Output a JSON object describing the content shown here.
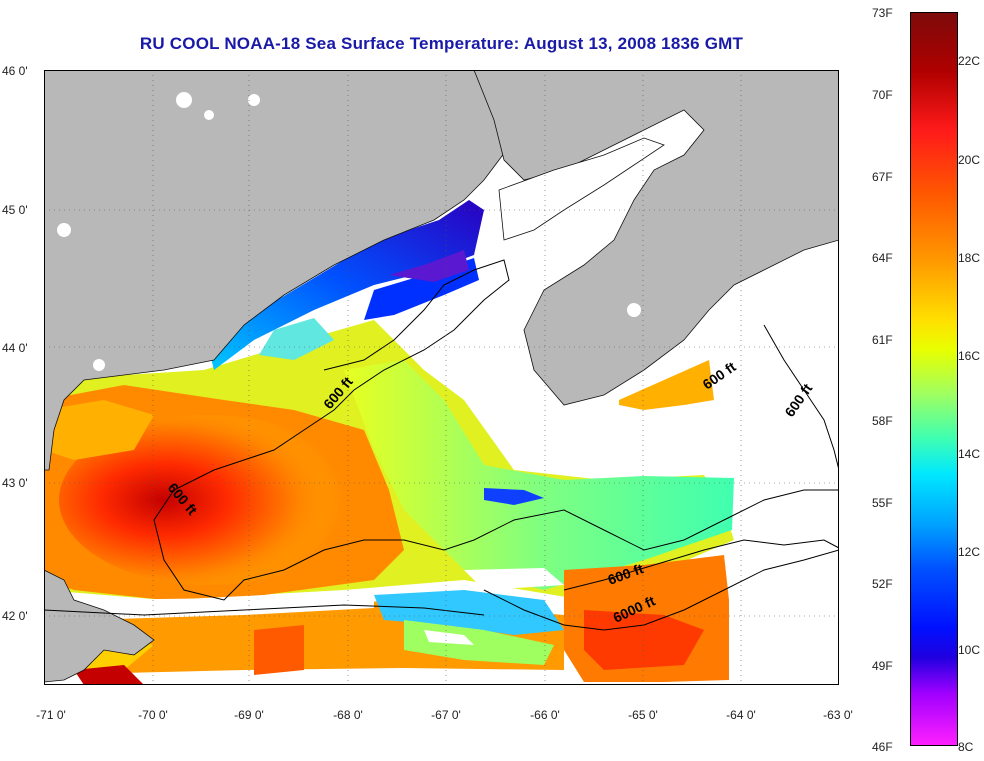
{
  "title": "RU COOL  NOAA-18  Sea Surface Temperature:  August 13, 2008 1836 GMT",
  "map": {
    "lat_labels": [
      "46 0'",
      "45 0'",
      "44 0'",
      "43 0'",
      "42 0'"
    ],
    "lon_labels": [
      "-71 0'",
      "-70 0'",
      "-69 0'",
      "-68 0'",
      "-67 0'",
      "-66 0'",
      "-65 0'",
      "-64 0'",
      "-63 0'"
    ],
    "contour_labels": [
      "600 ft",
      "600 ft",
      "600 ft",
      "600 ft",
      "600 ft",
      "6000 ft"
    ],
    "colors": {
      "land": "#b8b8b8",
      "no_data": "#ffffff",
      "contour": "#000000"
    }
  },
  "colorbar": {
    "fahrenheit": [
      "73F",
      "70F",
      "67F",
      "64F",
      "61F",
      "58F",
      "55F",
      "52F",
      "49F",
      "46F"
    ],
    "celsius": [
      "22C",
      "20C",
      "18C",
      "16C",
      "14C",
      "12C",
      "10C",
      "8C"
    ]
  }
}
